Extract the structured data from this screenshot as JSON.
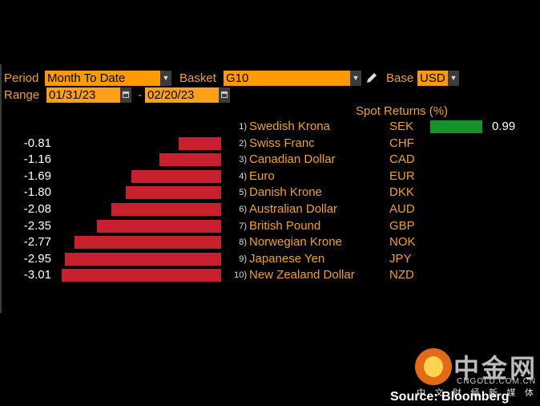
{
  "toolbar": {
    "period_label": "Period",
    "period_value": "Month To Date",
    "basket_label": "Basket",
    "basket_value": "G10",
    "base_label": "Base",
    "base_value": "USD",
    "range_label": "Range",
    "range_start": "01/31/23",
    "range_sep": "-",
    "range_end": "02/20/23"
  },
  "chart_data": {
    "type": "bar",
    "title": "Spot Returns (%)",
    "orientation": "horizontal",
    "categories": [
      "Swedish Krona",
      "Swiss Franc",
      "Canadian Dollar",
      "Euro",
      "Danish Krone",
      "Australian Dollar",
      "British Pound",
      "Norwegian Krone",
      "Japanese Yen",
      "New Zealand Dollar"
    ],
    "codes": [
      "SEK",
      "CHF",
      "CAD",
      "EUR",
      "DKK",
      "AUD",
      "GBP",
      "NOK",
      "JPY",
      "NZD"
    ],
    "ranks": [
      "1)",
      "2)",
      "3)",
      "4)",
      "5)",
      "6)",
      "7)",
      "8)",
      "9)",
      "10)"
    ],
    "values": [
      0.99,
      -0.81,
      -1.16,
      -1.69,
      -1.8,
      -2.08,
      -2.35,
      -2.77,
      -2.95,
      -3.01
    ],
    "value_labels": [
      "0.99",
      "-0.81",
      "-1.16",
      "-1.69",
      "-1.80",
      "-2.08",
      "-2.35",
      "-2.77",
      "-2.95",
      "-3.01"
    ],
    "positive_color": "#16922a",
    "negative_color": "#c8202e"
  },
  "watermark": {
    "brand": "中金网",
    "url": "CNGOLD.COM.CN",
    "tagline": "中 文 财 经 新 媒 体"
  },
  "source": "Source: Bloomberg"
}
